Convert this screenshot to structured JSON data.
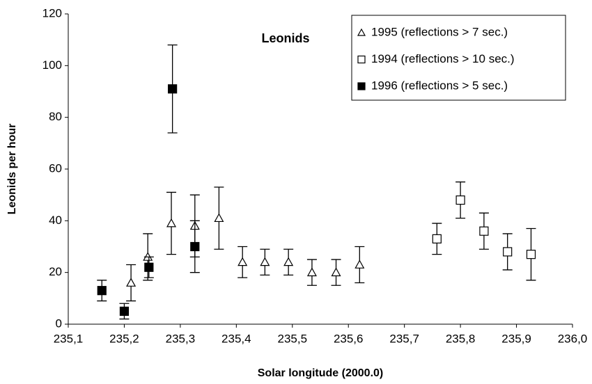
{
  "chart_data": {
    "type": "scatter",
    "title": "Leonids",
    "x_label": "Solar longitude (2000.0)",
    "y_label": "Leonids per hour",
    "xlim": [
      235.1,
      236.0
    ],
    "xticks": [
      {
        "value": 235.1,
        "label": "235,1"
      },
      {
        "value": 235.2,
        "label": "235,2"
      },
      {
        "value": 235.3,
        "label": "235,3"
      },
      {
        "value": 235.4,
        "label": "235,4"
      },
      {
        "value": 235.5,
        "label": "235,5"
      },
      {
        "value": 235.6,
        "label": "235,6"
      },
      {
        "value": 235.7,
        "label": "235,7"
      },
      {
        "value": 235.8,
        "label": "235,8"
      },
      {
        "value": 235.9,
        "label": "235,9"
      },
      {
        "value": 236.0,
        "label": "236,0"
      }
    ],
    "ylim": [
      0,
      120
    ],
    "yticks": [
      0,
      20,
      40,
      60,
      80,
      100,
      120
    ],
    "grid": false,
    "legend": "top-right",
    "series": [
      {
        "name": "1995 (reflections > 7 sec.)",
        "marker": "triangle",
        "filled": false,
        "color": "#000000",
        "x": [
          235.212,
          235.242,
          235.284,
          235.326,
          235.369,
          235.411,
          235.451,
          235.493,
          235.535,
          235.578,
          235.62
        ],
        "values": [
          16,
          26,
          39,
          38,
          41,
          24,
          24,
          24,
          20,
          20,
          23
        ],
        "errors": [
          7,
          9,
          12,
          12,
          12,
          6,
          5,
          5,
          5,
          5,
          7
        ]
      },
      {
        "name": "1994 (reflections > 10 sec.)",
        "marker": "square",
        "filled": false,
        "color": "#000000",
        "x": [
          235.758,
          235.8,
          235.842,
          235.884,
          235.926
        ],
        "values": [
          33,
          48,
          36,
          28,
          27
        ],
        "errors": [
          6,
          7,
          7,
          7,
          10
        ]
      },
      {
        "name": "1996 (reflections > 5 sec.)",
        "marker": "square",
        "filled": true,
        "color": "#000000",
        "x": [
          235.16,
          235.2,
          235.244,
          235.286,
          235.326
        ],
        "values": [
          13,
          5,
          22,
          91,
          30
        ],
        "errors": [
          4,
          3,
          4,
          17,
          10
        ]
      }
    ]
  }
}
